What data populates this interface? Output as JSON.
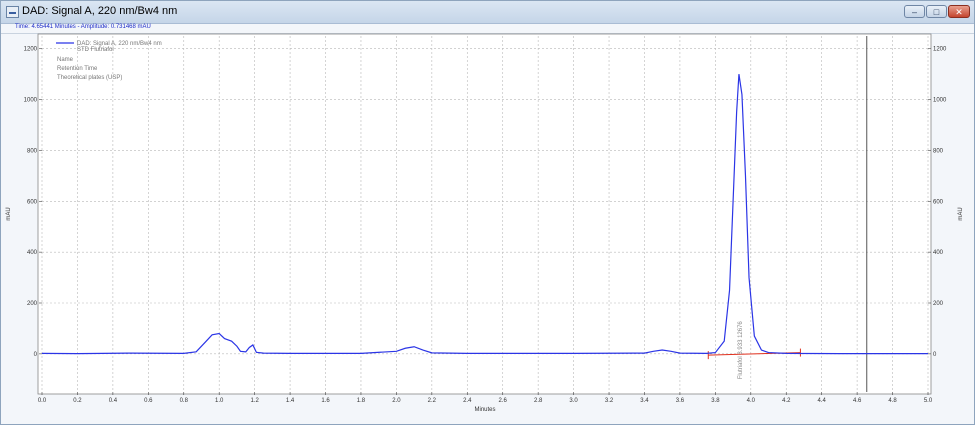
{
  "window": {
    "title": "DAD: Signal A, 220 nm/Bw4 nm",
    "buttons": {
      "minimize": "–",
      "maximize": "□",
      "close": "✕"
    }
  },
  "status_text": "Time: 4.65441 Minutes - Amplitude: 0.731468 mAU",
  "colors": {
    "trace": "#2b35e6",
    "baseline": "#e0301e",
    "grid": "#b8b8b8",
    "cursor": "#555555"
  },
  "legend": {
    "series_label": "DAD: Signal A, 220 nm/Bw4 nm",
    "series_label_2": "STD Flutriafol",
    "rows": [
      "Name",
      "Retention Time",
      "Theoretical plates (USP)"
    ]
  },
  "peak_annotation": "Flutriafol  3.933  12676",
  "chart_data": {
    "type": "line",
    "title": "DAD: Signal A, 220 nm/Bw4 nm",
    "xlabel": "Minutes",
    "ylabel": "mAU",
    "xlim": [
      0.0,
      5.0
    ],
    "ylim": [
      -150,
      1250
    ],
    "x_ticks": [
      0.0,
      0.2,
      0.4,
      0.6,
      0.8,
      1.0,
      1.2,
      1.4,
      1.6,
      1.8,
      2.0,
      2.2,
      2.4,
      2.6,
      2.8,
      3.0,
      3.2,
      3.4,
      3.6,
      3.8,
      4.0,
      4.2,
      4.4,
      4.6,
      4.8,
      5.0
    ],
    "x_tick_labels": [
      "0.0",
      "0.2",
      "0.4",
      "0.6",
      "0.8",
      "1.0",
      "1.2",
      "1.4",
      "1.6",
      "1.8",
      "2.0",
      "2.2",
      "2.4",
      "2.6",
      "2.8",
      "3.0",
      "3.2",
      "3.4",
      "3.6",
      "3.8",
      "4.0",
      "4.2",
      "4.4",
      "4.6",
      "4.8",
      "5.0"
    ],
    "y_ticks": [
      0,
      200,
      400,
      600,
      800,
      1000,
      1200
    ],
    "y_tick_labels": [
      "0",
      "200",
      "400",
      "600",
      "800",
      "1000",
      "1200"
    ],
    "series": [
      {
        "name": "DAD: Signal A, 220 nm/Bw4 nm",
        "x": [
          0.0,
          0.2,
          0.5,
          0.8,
          0.87,
          0.92,
          0.96,
          1.0,
          1.03,
          1.07,
          1.1,
          1.12,
          1.15,
          1.17,
          1.19,
          1.21,
          1.25,
          1.4,
          1.8,
          2.0,
          2.05,
          2.1,
          2.15,
          2.2,
          2.4,
          3.0,
          3.4,
          3.45,
          3.5,
          3.55,
          3.6,
          3.75,
          3.8,
          3.85,
          3.88,
          3.9,
          3.92,
          3.933,
          3.95,
          3.97,
          3.99,
          4.02,
          4.06,
          4.1,
          4.2,
          4.5,
          5.0
        ],
        "y": [
          2,
          1,
          3,
          2,
          8,
          45,
          75,
          80,
          60,
          50,
          30,
          10,
          8,
          25,
          35,
          6,
          3,
          2,
          2,
          10,
          22,
          28,
          15,
          4,
          2,
          2,
          3,
          10,
          15,
          10,
          3,
          2,
          5,
          50,
          250,
          600,
          950,
          1100,
          1020,
          700,
          300,
          70,
          15,
          5,
          2,
          1,
          1
        ]
      },
      {
        "name": "baseline",
        "x": [
          3.76,
          4.28
        ],
        "y": [
          -5,
          5
        ]
      }
    ],
    "markers": {
      "cursor_x": 4.65441,
      "peak_rt": 3.933,
      "baseline_ticks": [
        3.76,
        4.28
      ]
    },
    "grid": true,
    "legend_position": "top-left"
  }
}
